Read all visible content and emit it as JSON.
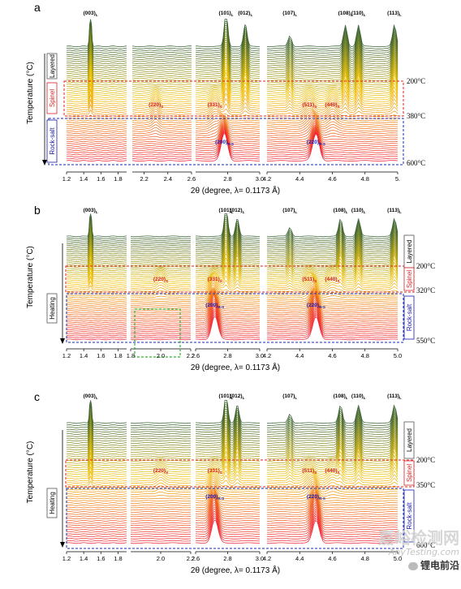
{
  "figure": {
    "watermark": {
      "line1": "嘉峪检测网",
      "line2": "AnyTesting.com",
      "line3": "锂电前沿"
    },
    "colors": {
      "cool": "#2e5a2a",
      "mid": "#f2c200",
      "hot": "#ee1b2c",
      "layered_box": "#555555",
      "spinel_box": "#e02020",
      "rocksalt_box": "#1a2ab8",
      "green_box": "#2fb52f",
      "spinel_label": "#d42020",
      "rocksalt_label": "#1a1ab0"
    }
  },
  "chart_data": [
    {
      "type": "area",
      "panel": "a",
      "ylabel": "Temperature (°C)",
      "xlabel": "2θ (degree, λ= 0.1173 Å)",
      "windows": [
        {
          "range": [
            1.2,
            1.9
          ],
          "ticks": [
            "1.2",
            "1.4",
            "1.6",
            "1.8"
          ]
        },
        {
          "range": [
            2.1,
            2.6
          ],
          "ticks": [
            "2.2",
            "2.4",
            "2.6"
          ]
        },
        {
          "range": [
            2.6,
            3.0
          ],
          "ticks": [
            "2.8",
            "3.0"
          ]
        },
        {
          "range": [
            4.2,
            5.0
          ],
          "ticks": [
            "4.2",
            "4.4",
            "4.6",
            "4.8",
            "5."
          ]
        }
      ],
      "phase_labels": [
        "Layered",
        "Spinel",
        "Rock-salt"
      ],
      "temperatures": [
        "200°C",
        "380°C",
        "600°C"
      ],
      "transitions": [
        200,
        380,
        600
      ],
      "peaks": [
        {
          "label": "(003)",
          "sub": "L",
          "x": 1.48,
          "phase": "layered"
        },
        {
          "label": "(101)",
          "sub": "L",
          "x": 2.79,
          "phase": "layered"
        },
        {
          "label": "(012)",
          "sub": "L",
          "x": 2.91,
          "phase": "layered"
        },
        {
          "label": "(107)",
          "sub": "L",
          "x": 4.34,
          "phase": "layered"
        },
        {
          "label": "(108)",
          "sub": "L",
          "x": 4.68,
          "phase": "layered"
        },
        {
          "label": "(110)",
          "sub": "L",
          "x": 4.76,
          "phase": "layered"
        },
        {
          "label": "(113)",
          "sub": "L",
          "x": 4.98,
          "phase": "layered"
        },
        {
          "label": "(220)",
          "sub": "S",
          "x": 2.3,
          "phase": "spinel"
        },
        {
          "label": "(331)",
          "sub": "S",
          "x": 2.72,
          "phase": "spinel"
        },
        {
          "label": "(511)",
          "sub": "S",
          "x": 4.46,
          "phase": "spinel"
        },
        {
          "label": "(440)",
          "sub": "S",
          "x": 4.6,
          "phase": "spinel"
        },
        {
          "label": "(200)",
          "sub": "R-S",
          "x": 2.78,
          "phase": "rocksalt"
        },
        {
          "label": "(220)",
          "sub": "R-S",
          "x": 4.5,
          "phase": "rocksalt"
        }
      ]
    },
    {
      "type": "area",
      "panel": "b",
      "ylabel": "Temperature (°C)",
      "xlabel": "2θ (degree, λ= 0.1173 Å)",
      "heating_label": "Heating",
      "windows": [
        {
          "range": [
            1.2,
            1.9
          ],
          "ticks": [
            "1.2",
            "1.4",
            "1.6",
            "1.8"
          ]
        },
        {
          "range": [
            1.8,
            2.2
          ],
          "ticks": [
            "1.8",
            "2.0",
            "2.2"
          ]
        },
        {
          "range": [
            2.6,
            3.0
          ],
          "ticks": [
            "2.6",
            "2.8",
            "3.0"
          ]
        },
        {
          "range": [
            4.2,
            5.0
          ],
          "ticks": [
            "4.2",
            "4.4",
            "4.6",
            "4.8",
            "5.0"
          ]
        }
      ],
      "phase_labels": [
        "Layered",
        "Spinel",
        "Rock-salt"
      ],
      "temperatures": [
        "200°C",
        "320°C",
        "550°C"
      ],
      "transitions": [
        200,
        320,
        550
      ],
      "peaks": [
        {
          "label": "(003)",
          "sub": "L",
          "x": 1.48,
          "phase": "layered"
        },
        {
          "label": "(101)",
          "sub": "L",
          "x": 2.79,
          "phase": "layered"
        },
        {
          "label": "(012)",
          "sub": "L",
          "x": 2.86,
          "phase": "layered"
        },
        {
          "label": "(107)",
          "sub": "L",
          "x": 4.34,
          "phase": "layered"
        },
        {
          "label": "(108)",
          "sub": "L",
          "x": 4.65,
          "phase": "layered"
        },
        {
          "label": "(110)",
          "sub": "L",
          "x": 4.76,
          "phase": "layered"
        },
        {
          "label": "(113)",
          "sub": "L",
          "x": 4.98,
          "phase": "layered"
        },
        {
          "label": "(220)",
          "sub": "S",
          "x": 2.0,
          "phase": "spinel"
        },
        {
          "label": "(331)",
          "sub": "S",
          "x": 2.72,
          "phase": "spinel"
        },
        {
          "label": "(511)",
          "sub": "S",
          "x": 4.46,
          "phase": "spinel"
        },
        {
          "label": "(440)",
          "sub": "S",
          "x": 4.6,
          "phase": "spinel"
        },
        {
          "label": "(200)",
          "sub": "R-S",
          "x": 2.72,
          "phase": "rocksalt"
        },
        {
          "label": "(220)",
          "sub": "R-S",
          "x": 4.5,
          "phase": "rocksalt"
        }
      ]
    },
    {
      "type": "area",
      "panel": "c",
      "ylabel": "Temperature (°C)",
      "xlabel": "2θ (degree, λ= 0.1173 Å)",
      "heating_label": "Heating",
      "windows": [
        {
          "range": [
            1.2,
            1.9
          ],
          "ticks": [
            "1.2",
            "1.4",
            "1.6",
            "1.8"
          ]
        },
        {
          "range": [
            1.8,
            2.2
          ],
          "ticks": [
            "2.0",
            "2.2"
          ]
        },
        {
          "range": [
            2.6,
            3.0
          ],
          "ticks": [
            "2.6",
            "2.8",
            "3.0"
          ]
        },
        {
          "range": [
            4.2,
            5.0
          ],
          "ticks": [
            "4.2",
            "4.4",
            "4.6",
            "4.8",
            "5.0"
          ]
        }
      ],
      "phase_labels": [
        "Layered",
        "Spinel",
        "Rock-salt"
      ],
      "temperatures": [
        "200°C",
        "350°C",
        "600°C"
      ],
      "transitions": [
        200,
        350,
        600
      ],
      "peaks": [
        {
          "label": "(003)",
          "sub": "L",
          "x": 1.48,
          "phase": "layered"
        },
        {
          "label": "(101)",
          "sub": "L",
          "x": 2.79,
          "phase": "layered"
        },
        {
          "label": "(012)",
          "sub": "L",
          "x": 2.86,
          "phase": "layered"
        },
        {
          "label": "(107)",
          "sub": "L",
          "x": 4.34,
          "phase": "layered"
        },
        {
          "label": "(108)",
          "sub": "L",
          "x": 4.65,
          "phase": "layered"
        },
        {
          "label": "(110)",
          "sub": "L",
          "x": 4.76,
          "phase": "layered"
        },
        {
          "label": "(113)",
          "sub": "L",
          "x": 4.98,
          "phase": "layered"
        },
        {
          "label": "(220)",
          "sub": "S",
          "x": 2.0,
          "phase": "spinel"
        },
        {
          "label": "(331)",
          "sub": "S",
          "x": 2.72,
          "phase": "spinel"
        },
        {
          "label": "(511)",
          "sub": "S",
          "x": 4.46,
          "phase": "spinel"
        },
        {
          "label": "(440)",
          "sub": "S",
          "x": 4.6,
          "phase": "spinel"
        },
        {
          "label": "(200)",
          "sub": "R-S",
          "x": 2.72,
          "phase": "rocksalt"
        },
        {
          "label": "(220)",
          "sub": "R-S",
          "x": 4.5,
          "phase": "rocksalt"
        }
      ]
    }
  ]
}
